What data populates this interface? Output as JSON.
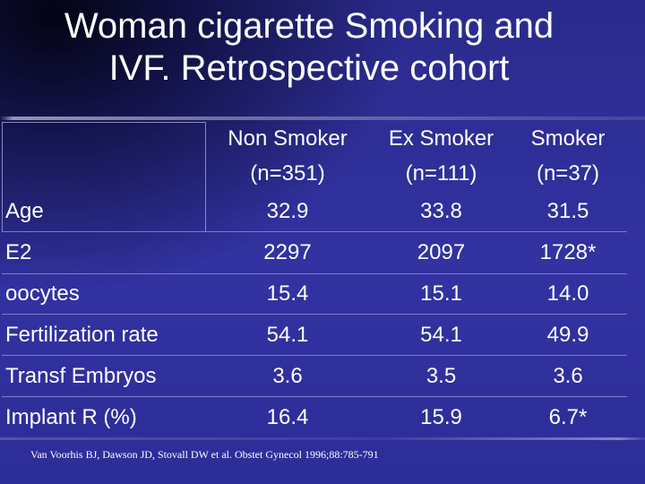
{
  "slide": {
    "title_line1": "Woman cigarette Smoking and",
    "title_line2": "IVF. Retrospective cohort",
    "citation": "Van Voorhis BJ, Dawson JD, Stovall DW et al. Obstet Gynecol 1996;88:785-791"
  },
  "table": {
    "columns": [
      {
        "name": "Non Smoker",
        "n": "(n=351)"
      },
      {
        "name": "Ex Smoker",
        "n": "(n=111)"
      },
      {
        "name": "Smoker",
        "n": "(n=37)"
      }
    ],
    "rows": [
      {
        "label": "Age",
        "values": [
          "32.9",
          "33.8",
          "31.5"
        ]
      },
      {
        "label": "E2",
        "values": [
          "2297",
          "2097",
          "1728*"
        ]
      },
      {
        "label": "oocytes",
        "values": [
          "15.4",
          "15.1",
          "14.0"
        ]
      },
      {
        "label": "Fertilization rate",
        "values": [
          "54.1",
          "54.1",
          "49.9"
        ]
      },
      {
        "label": "Transf Embryos",
        "values": [
          "3.6",
          "3.5",
          "3.6"
        ]
      },
      {
        "label": "Implant R (%)",
        "values": [
          "16.4",
          "15.9",
          "6.7*"
        ]
      }
    ]
  }
}
